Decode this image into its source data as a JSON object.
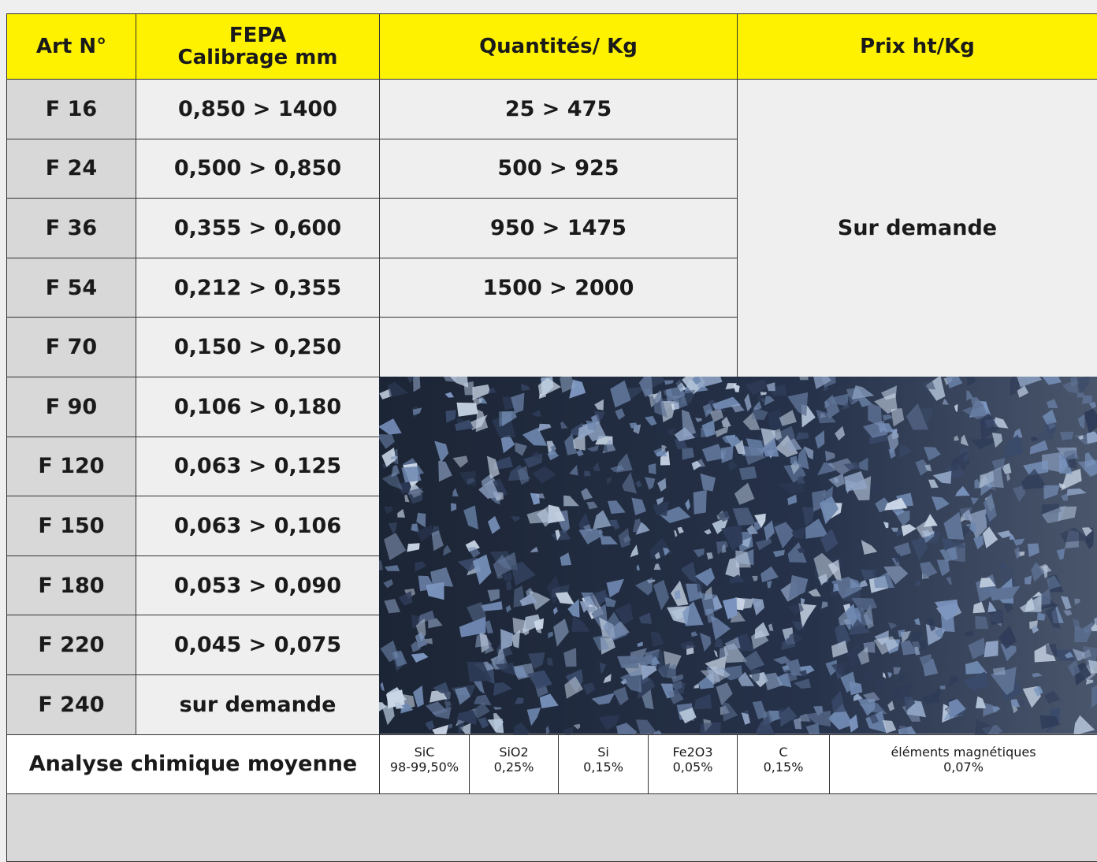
{
  "header": {
    "art": "Art N°",
    "fepa": [
      "FEPA",
      "Calibrage mm"
    ],
    "quantities": "Quantités/ Kg",
    "price": "Prix ht/Kg"
  },
  "rows": [
    [
      "F 16",
      "0,850 > 1400"
    ],
    [
      "F 24",
      "0,500 > 0,850"
    ],
    [
      "F 36",
      "0,355 > 0,600"
    ],
    [
      "F 54",
      "0,212 > 0,355"
    ],
    [
      "F 70",
      "0,150 > 0,250"
    ],
    [
      "F 90",
      "0,106 > 0,180"
    ],
    [
      "F 120",
      "0,063 > 0,125"
    ],
    [
      "F 150",
      "0,063 > 0,106"
    ],
    [
      "F 180",
      "0,053 > 0,090"
    ],
    [
      "F 220",
      "0,045 > 0,075"
    ],
    [
      "F 240",
      "sur demande"
    ]
  ],
  "quantities": [
    "25 > 475",
    "500 > 925",
    "950 > 1475",
    "1500 > 2000"
  ],
  "price": "Sur demande",
  "analysis": {
    "label": "Analyse chimique moyenne",
    "items": [
      {
        "name": "SiC",
        "value": "98-99,50%"
      },
      {
        "name": "SiO2",
        "value": "0,25%"
      },
      {
        "name": "Si",
        "value": "0,15%"
      },
      {
        "name": "Fe2O3",
        "value": "0,05%"
      },
      {
        "name": "C",
        "value": "0,15%"
      },
      {
        "name": "éléments magnétiques",
        "value": "0,07%"
      }
    ]
  }
}
